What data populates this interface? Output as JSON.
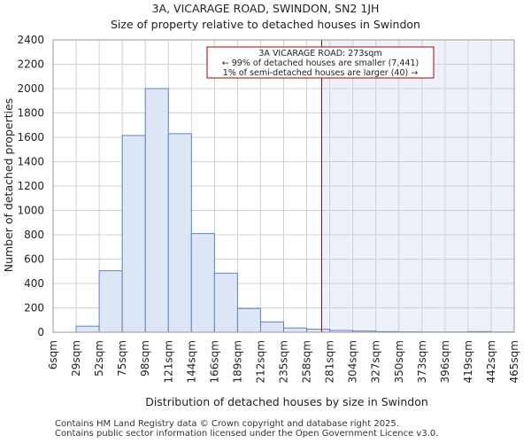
{
  "title_line1": "3A, VICARAGE ROAD, SWINDON, SN2 1JH",
  "title_line2": "Size of property relative to detached houses in Swindon",
  "footer_line1": "Contains HM Land Registry data © Crown copyright and database right 2025.",
  "footer_line2": "Contains public sector information licensed under the Open Government Licence v3.0.",
  "colors": {
    "bar_fill": "#dde6f4",
    "bar_stroke": "#5a85c5",
    "highlight_bg": "#eef1fa",
    "marker_line": "#aa0000",
    "grid": "#d0d0d0"
  },
  "chart_data": {
    "type": "bar",
    "title": "Size of property relative to detached houses in Swindon",
    "xlabel": "Distribution of detached houses by size in Swindon",
    "ylabel": "Number of detached properties",
    "ylim": [
      0,
      2400
    ],
    "yticks": [
      0,
      200,
      400,
      600,
      800,
      1000,
      1200,
      1400,
      1600,
      1800,
      2000,
      2200,
      2400
    ],
    "bin_edges": [
      "6sqm",
      "29sqm",
      "52sqm",
      "75sqm",
      "98sqm",
      "121sqm",
      "144sqm",
      "166sqm",
      "189sqm",
      "212sqm",
      "235sqm",
      "258sqm",
      "281sqm",
      "304sqm",
      "327sqm",
      "350sqm",
      "373sqm",
      "396sqm",
      "419sqm",
      "442sqm",
      "465sqm"
    ],
    "values": [
      0,
      50,
      505,
      1615,
      2000,
      1630,
      810,
      485,
      195,
      85,
      35,
      25,
      15,
      10,
      5,
      3,
      2,
      2,
      5,
      2
    ],
    "marker_value_sqm": 273,
    "marker_bin_position": 11.65,
    "annotation": {
      "line1": "3A VICARAGE ROAD: 273sqm",
      "line2": "← 99% of detached houses are smaller (7,441)",
      "line3": "1% of semi-detached houses are larger (40) →"
    }
  }
}
